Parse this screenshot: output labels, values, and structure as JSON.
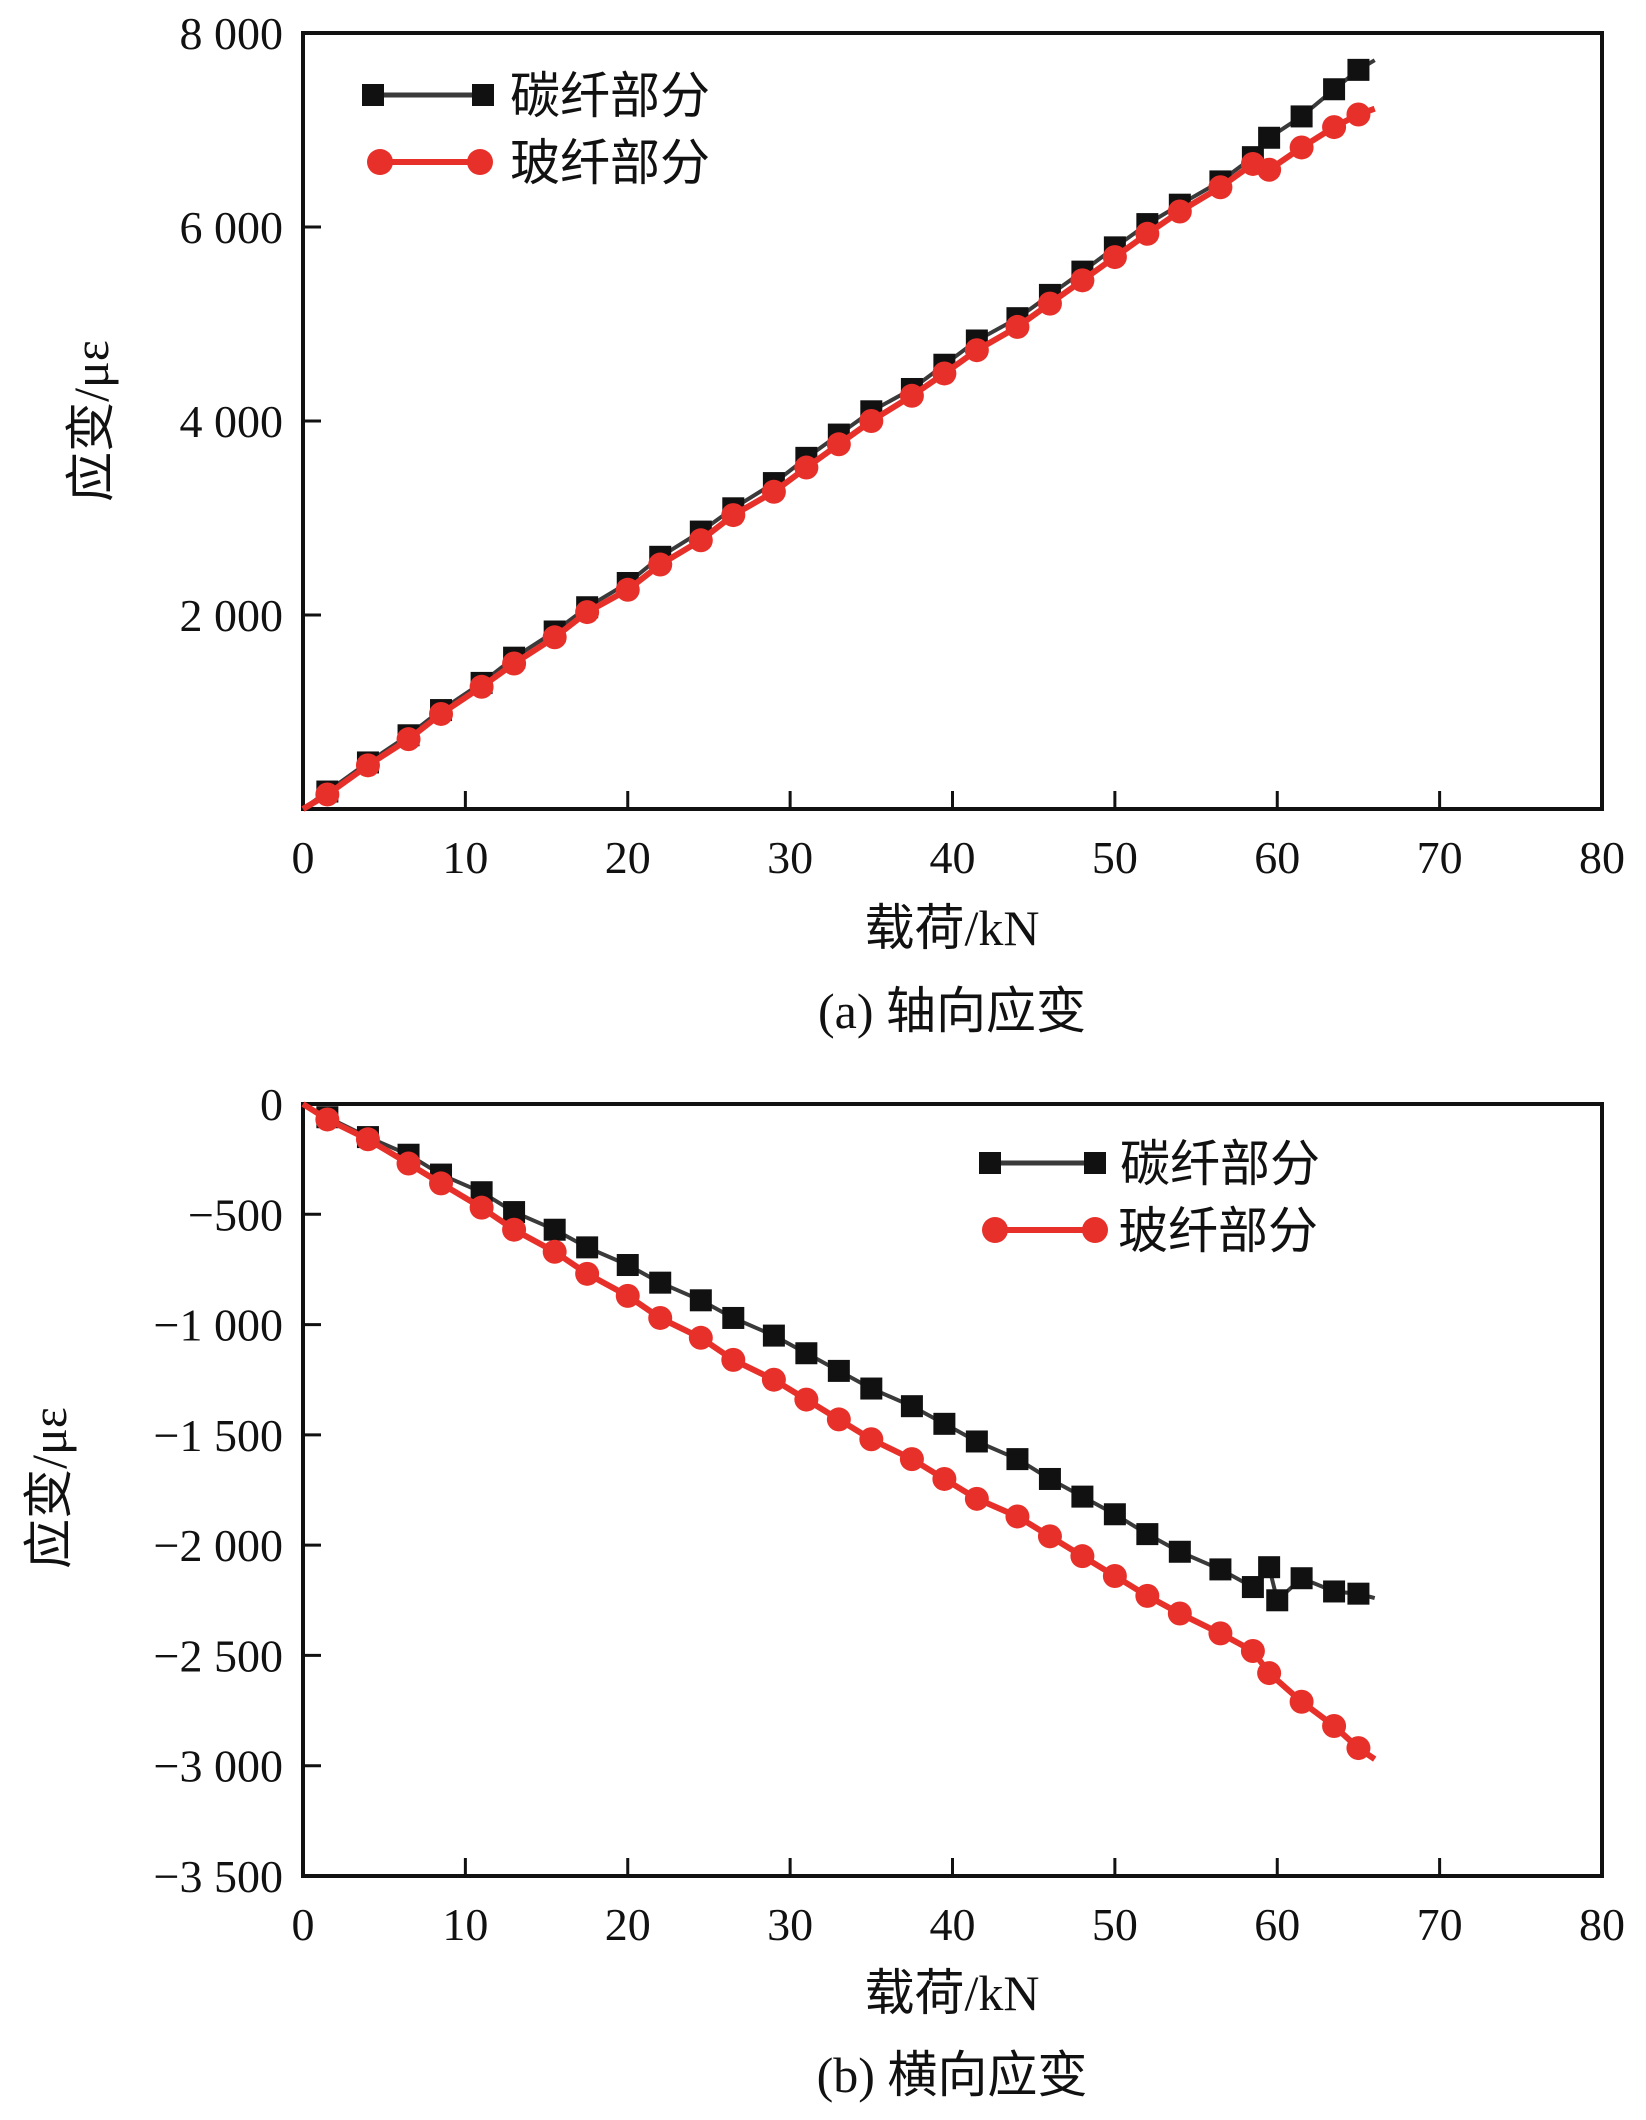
{
  "chart_data": [
    {
      "id": "a",
      "type": "line",
      "caption": "(a) 轴向应变",
      "xlabel": "载荷/kN",
      "ylabel": "应变/με",
      "xlim": [
        0,
        80
      ],
      "ylim": [
        0,
        8000
      ],
      "xticks": [
        0,
        10,
        20,
        30,
        40,
        50,
        60,
        70,
        80
      ],
      "xtick_labels": [
        "0",
        "10",
        "20",
        "30",
        "40",
        "50",
        "60",
        "70",
        "80"
      ],
      "yticks": [
        2000,
        4000,
        6000,
        8000
      ],
      "ytick_labels": [
        "2 000",
        "4 000",
        "6 000",
        "8 000"
      ],
      "grid": false,
      "legend_position": "top-left",
      "series": [
        {
          "name": "碳纤部分",
          "color": "#111111",
          "line_color": "#3a3a3a",
          "marker": "square",
          "x": [
            0,
            1.5,
            4,
            6.5,
            8.5,
            11,
            13,
            15.5,
            17.5,
            20,
            22,
            24.5,
            26.5,
            29,
            31,
            33,
            35,
            37.5,
            39.5,
            41.5,
            44,
            46,
            48,
            50,
            52,
            54,
            56.5,
            58.5,
            59.5,
            61.5,
            63.5,
            65,
            66
          ],
          "y": [
            0,
            180,
            480,
            760,
            1020,
            1300,
            1560,
            1830,
            2080,
            2330,
            2600,
            2860,
            3100,
            3360,
            3620,
            3860,
            4100,
            4330,
            4580,
            4830,
            5060,
            5300,
            5540,
            5790,
            6030,
            6230,
            6470,
            6720,
            6920,
            7140,
            7420,
            7620,
            7720
          ]
        },
        {
          "name": "玻纤部分",
          "color": "#e8302a",
          "line_color": "#e8302a",
          "marker": "circle",
          "x": [
            0,
            1.5,
            4,
            6.5,
            8.5,
            11,
            13,
            15.5,
            17.5,
            20,
            22,
            24.5,
            26.5,
            29,
            31,
            33,
            35,
            37.5,
            39.5,
            41.5,
            44,
            46,
            48,
            50,
            52,
            54,
            56.5,
            58.5,
            59.5,
            61.5,
            63.5,
            65,
            66
          ],
          "y": [
            0,
            150,
            450,
            720,
            980,
            1260,
            1500,
            1770,
            2030,
            2260,
            2520,
            2770,
            3030,
            3270,
            3520,
            3760,
            4000,
            4260,
            4490,
            4730,
            4970,
            5210,
            5450,
            5690,
            5930,
            6160,
            6410,
            6650,
            6590,
            6820,
            7030,
            7160,
            7220
          ]
        }
      ]
    },
    {
      "id": "b",
      "type": "line",
      "caption": "(b) 横向应变",
      "xlabel": "载荷/kN",
      "ylabel": "应变/με",
      "xlim": [
        0,
        80
      ],
      "ylim": [
        -3500,
        0
      ],
      "xticks": [
        0,
        10,
        20,
        30,
        40,
        50,
        60,
        70,
        80
      ],
      "xtick_labels": [
        "0",
        "10",
        "20",
        "30",
        "40",
        "50",
        "60",
        "70",
        "80"
      ],
      "yticks": [
        0,
        -500,
        -1000,
        -1500,
        -2000,
        -2500,
        -3000,
        -3500
      ],
      "ytick_labels": [
        "0",
        "−500",
        "−1 000",
        "−1 500",
        "−2 000",
        "−2 500",
        "−3 000",
        "−3 500"
      ],
      "grid": false,
      "legend_position": "top-right",
      "series": [
        {
          "name": "碳纤部分",
          "color": "#111111",
          "line_color": "#3a3a3a",
          "marker": "square",
          "x": [
            0,
            1.5,
            4,
            6.5,
            8.5,
            11,
            13,
            15.5,
            17.5,
            20,
            22,
            24.5,
            26.5,
            29,
            31,
            33,
            35,
            37.5,
            39.5,
            41.5,
            44,
            46,
            48,
            50,
            52,
            54,
            56.5,
            58.5,
            59.5,
            60,
            61.5,
            63.5,
            65,
            66
          ],
          "y": [
            0,
            -60,
            -150,
            -230,
            -320,
            -400,
            -490,
            -570,
            -650,
            -730,
            -810,
            -890,
            -970,
            -1050,
            -1130,
            -1210,
            -1290,
            -1370,
            -1450,
            -1530,
            -1610,
            -1700,
            -1780,
            -1860,
            -1950,
            -2030,
            -2110,
            -2190,
            -2100,
            -2250,
            -2150,
            -2210,
            -2220,
            -2240
          ]
        },
        {
          "name": "玻纤部分",
          "color": "#e8302a",
          "line_color": "#e8302a",
          "marker": "circle",
          "x": [
            0,
            1.5,
            4,
            6.5,
            8.5,
            11,
            13,
            15.5,
            17.5,
            20,
            22,
            24.5,
            26.5,
            29,
            31,
            33,
            35,
            37.5,
            39.5,
            41.5,
            44,
            46,
            48,
            50,
            52,
            54,
            56.5,
            58.5,
            59.5,
            61.5,
            63.5,
            65,
            66
          ],
          "y": [
            0,
            -70,
            -160,
            -270,
            -360,
            -470,
            -570,
            -670,
            -770,
            -870,
            -970,
            -1060,
            -1160,
            -1250,
            -1340,
            -1430,
            -1520,
            -1610,
            -1700,
            -1790,
            -1870,
            -1960,
            -2050,
            -2140,
            -2230,
            -2310,
            -2400,
            -2480,
            -2580,
            -2710,
            -2820,
            -2920,
            -2970
          ]
        }
      ]
    }
  ]
}
